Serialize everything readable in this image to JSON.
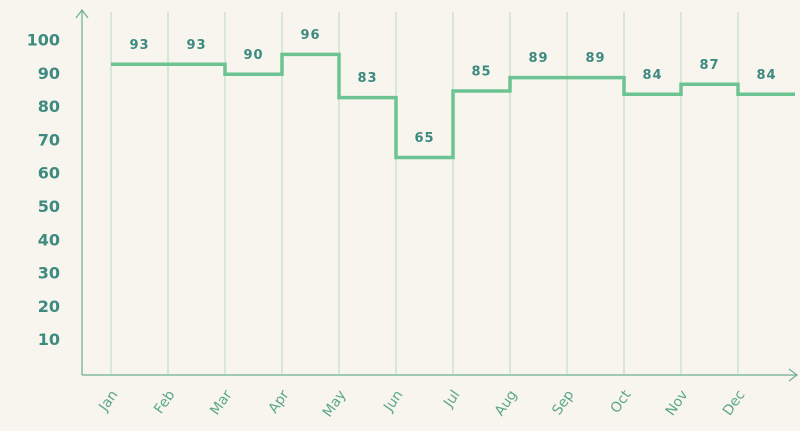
{
  "chart_data": {
    "type": "step",
    "categories": [
      "Jan",
      "Feb",
      "Mar",
      "Apr",
      "May",
      "Jun",
      "Jul",
      "Aug",
      "Sep",
      "Oct",
      "Nov",
      "Dec"
    ],
    "values": [
      93,
      93,
      90,
      96,
      83,
      65,
      85,
      89,
      89,
      84,
      87,
      84
    ],
    "color": "#6cc493",
    "ylim": [
      0,
      110
    ],
    "yticks": [
      10,
      20,
      30,
      40,
      50,
      60,
      70,
      80,
      90,
      100
    ],
    "grid": true
  }
}
